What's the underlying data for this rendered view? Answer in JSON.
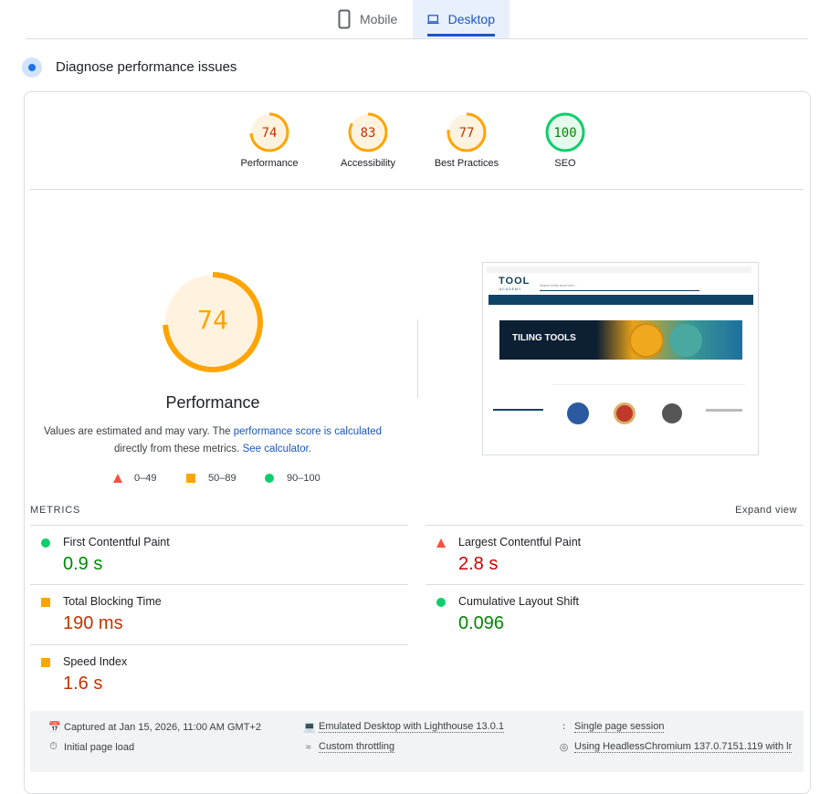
{
  "tabs": [
    {
      "label": "Mobile",
      "icon": "phone-icon",
      "active": false
    },
    {
      "label": "Desktop",
      "icon": "laptop-icon",
      "active": true
    }
  ],
  "section_title": "Diagnose performance issues",
  "colors": {
    "pass": "#0cce6b",
    "average": "#ffa400",
    "fail": "#ff4e42",
    "pass_text": "#008800",
    "average_text": "#c33300",
    "link": "#1a56c4"
  },
  "categories": [
    {
      "label": "Performance",
      "score": 74
    },
    {
      "label": "Accessibility",
      "score": 83
    },
    {
      "label": "Best Practices",
      "score": 77
    },
    {
      "label": "SEO",
      "score": 100
    }
  ],
  "main_gauge": {
    "score": 74,
    "label": "Performance"
  },
  "description": {
    "text1": "Values are estimated and may vary. The ",
    "link1": "performance score is calculated",
    "text2": "directly from these metrics. ",
    "link2": "See calculator."
  },
  "legend": [
    {
      "shape": "triangle",
      "label": "0–49"
    },
    {
      "shape": "square",
      "label": "50–89"
    },
    {
      "shape": "circle",
      "label": "90–100"
    }
  ],
  "screenshot": {
    "logo": "TOOL",
    "logo_sub": "ACADEMY",
    "banner": "TILING TOOLS",
    "search_placeholder": "Search entire store here..."
  },
  "metrics_header": {
    "title": "METRICS",
    "expand": "Expand view"
  },
  "metrics": [
    {
      "label": "First Contentful Paint",
      "value": "0.9 s",
      "rating": "pass"
    },
    {
      "label": "Largest Contentful Paint",
      "value": "2.8 s",
      "rating": "fail"
    },
    {
      "label": "Total Blocking Time",
      "value": "190 ms",
      "rating": "average"
    },
    {
      "label": "Cumulative Layout Shift",
      "value": "0.096",
      "rating": "pass"
    },
    {
      "label": "Speed Index",
      "value": "1.6 s",
      "rating": "average"
    }
  ],
  "footer": [
    {
      "icon": "calendar-icon",
      "text": "Captured at Jan 15, 2026, 11:00 AM GMT+2",
      "underline": false
    },
    {
      "icon": "devices-icon",
      "text": "Emulated Desktop with Lighthouse 13.0.1",
      "underline": true
    },
    {
      "icon": "session-icon",
      "text": "Single page session",
      "underline": true
    },
    {
      "icon": "timer-icon",
      "text": "Initial page load",
      "underline": false
    },
    {
      "icon": "network-icon",
      "text": "Custom throttling",
      "underline": true
    },
    {
      "icon": "chrome-icon",
      "text": "Using HeadlessChromium 137.0.7151.119 with lr",
      "underline": true
    }
  ]
}
